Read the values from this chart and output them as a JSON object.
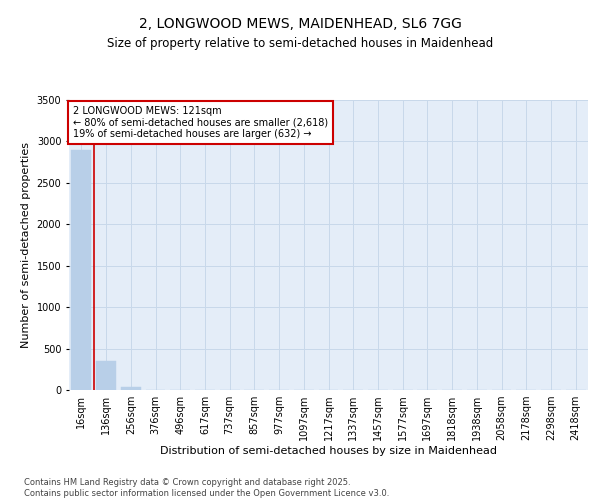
{
  "title1": "2, LONGWOOD MEWS, MAIDENHEAD, SL6 7GG",
  "title2": "Size of property relative to semi-detached houses in Maidenhead",
  "xlabel": "Distribution of semi-detached houses by size in Maidenhead",
  "ylabel": "Number of semi-detached properties",
  "categories": [
    "16sqm",
    "136sqm",
    "256sqm",
    "376sqm",
    "496sqm",
    "617sqm",
    "737sqm",
    "857sqm",
    "977sqm",
    "1097sqm",
    "1217sqm",
    "1337sqm",
    "1457sqm",
    "1577sqm",
    "1697sqm",
    "1818sqm",
    "1938sqm",
    "2058sqm",
    "2178sqm",
    "2298sqm",
    "2418sqm"
  ],
  "values": [
    2900,
    350,
    40,
    5,
    2,
    1,
    0,
    0,
    0,
    0,
    0,
    0,
    0,
    0,
    0,
    0,
    0,
    0,
    0,
    0,
    0
  ],
  "bar_color": "#b8cfe8",
  "bar_edge_color": "#b8cfe8",
  "grid_color": "#c8d8ea",
  "background_color": "#e4edf8",
  "annotation_text": "2 LONGWOOD MEWS: 121sqm\n← 80% of semi-detached houses are smaller (2,618)\n19% of semi-detached houses are larger (632) →",
  "vline_x": 0.5,
  "vline_color": "#cc0000",
  "annotation_box_color": "#cc0000",
  "ylim": [
    0,
    3500
  ],
  "yticks": [
    0,
    500,
    1000,
    1500,
    2000,
    2500,
    3000,
    3500
  ],
  "footer": "Contains HM Land Registry data © Crown copyright and database right 2025.\nContains public sector information licensed under the Open Government Licence v3.0.",
  "title1_fontsize": 10,
  "title2_fontsize": 8.5,
  "tick_fontsize": 7,
  "label_fontsize": 8,
  "footer_fontsize": 6
}
